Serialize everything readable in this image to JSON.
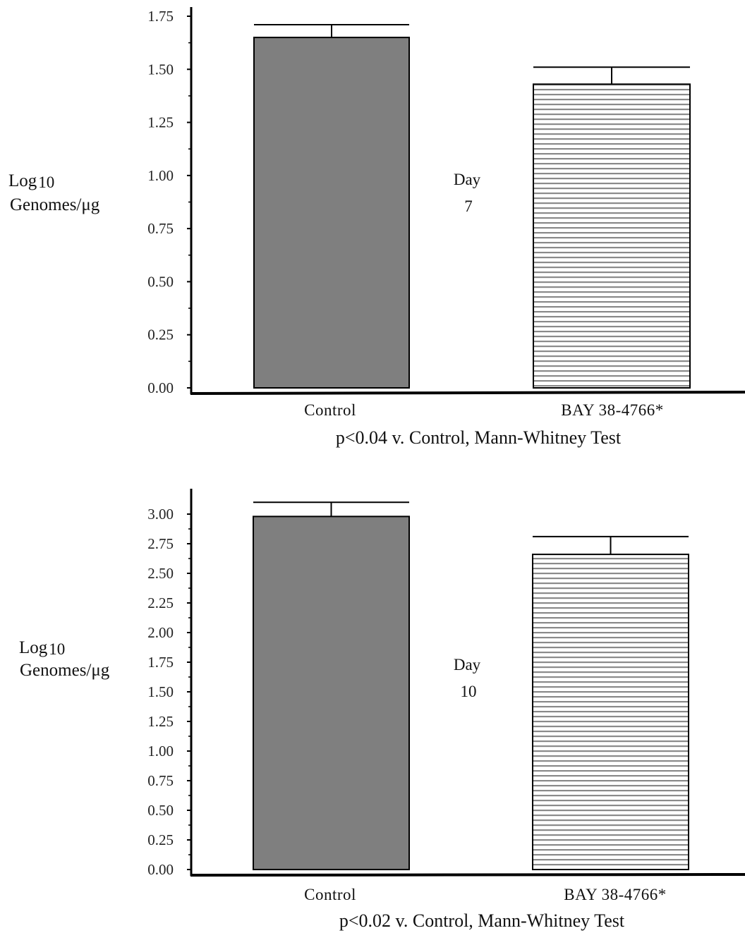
{
  "chart_data": [
    {
      "type": "bar",
      "categories": [
        "Control",
        "BAY 38-4766*"
      ],
      "values": [
        1.65,
        1.43
      ],
      "errors": [
        0.06,
        0.08
      ],
      "ylim": [
        0,
        1.75
      ],
      "yticks": [
        "0.00",
        "0.25",
        "0.50",
        "0.75",
        "1.00",
        "1.25",
        "1.50",
        "1.75"
      ],
      "ylabel_line1": "Log",
      "ylabel_sub": "10",
      "ylabel_line2": "Genomes/μg",
      "annotation_line1": "Day",
      "annotation_line2": "7",
      "footnote": "p<0.04 v. Control, Mann-Whitney Test",
      "bar_fills": [
        "solid-gray",
        "horizontal-stripes"
      ],
      "bar_color": "#7f7f7f"
    },
    {
      "type": "bar",
      "categories": [
        "Control",
        "BAY 38-4766*"
      ],
      "values": [
        2.98,
        2.66
      ],
      "errors": [
        0.12,
        0.15
      ],
      "ylim": [
        0,
        3.0
      ],
      "yticks": [
        "0.00",
        "0.25",
        "0.50",
        "0.75",
        "1.00",
        "1.25",
        "1.50",
        "1.75",
        "2.00",
        "2.25",
        "2.50",
        "2.75",
        "3.00"
      ],
      "ylabel_line1": "Log",
      "ylabel_sub": "10",
      "ylabel_line2": "Genomes/μg",
      "annotation_line1": "Day",
      "annotation_line2": "10",
      "footnote": "p<0.02 v. Control, Mann-Whitney Test",
      "bar_fills": [
        "solid-gray",
        "horizontal-stripes"
      ],
      "bar_color": "#7f7f7f"
    }
  ]
}
